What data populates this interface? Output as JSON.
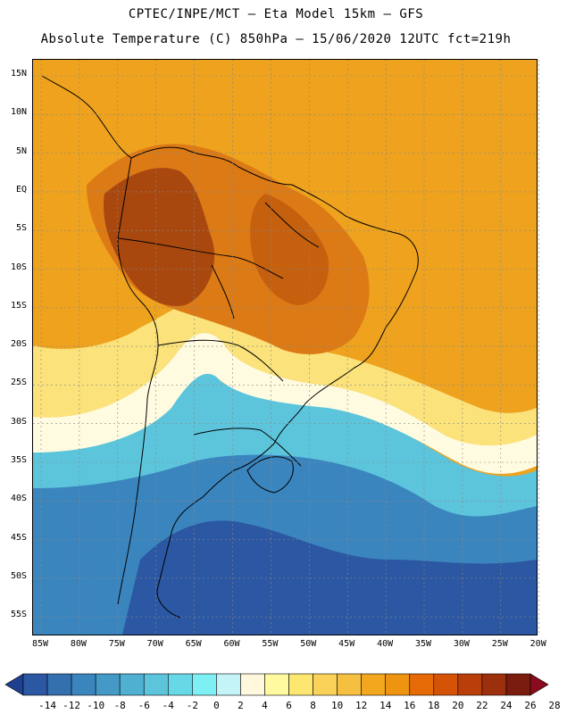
{
  "header": {
    "line1": "CPTEC/INPE/MCT –  Eta Model 15km – GFS",
    "line2": "Absolute Temperature (C) 850hPa – 15/06/2020 12UTC fct=219h"
  },
  "axes": {
    "lat_labels": [
      "15N",
      "10N",
      "5N",
      "EQ",
      "5S",
      "10S",
      "15S",
      "20S",
      "25S",
      "30S",
      "35S",
      "40S",
      "45S",
      "50S",
      "55S"
    ],
    "lon_labels": [
      "85W",
      "80W",
      "75W",
      "70W",
      "65W",
      "60W",
      "55W",
      "50W",
      "45W",
      "40W",
      "35W",
      "30W",
      "25W",
      "20W"
    ]
  },
  "colorbar": {
    "labels": [
      "-14",
      "-12",
      "-10",
      "-8",
      "-6",
      "-4",
      "-2",
      "0",
      "2",
      "4",
      "6",
      "8",
      "10",
      "12",
      "14",
      "16",
      "18",
      "20",
      "22",
      "24",
      "26",
      "28"
    ],
    "colors": [
      "#1f3f8f",
      "#2b57a3",
      "#3470b0",
      "#3b85be",
      "#4599c6",
      "#4fb0d2",
      "#5cc5dc",
      "#67d8e6",
      "#7eeff2",
      "#c4f3f8",
      "#fff8dc",
      "#fffaa0",
      "#fde770",
      "#fad25a",
      "#f5bf3f",
      "#f2a71f",
      "#ee9410",
      "#e66a06",
      "#d55307",
      "#b93e0a",
      "#9c2f0c",
      "#7a1c0e",
      "#8a0b1d"
    ],
    "range_min": -14,
    "range_max": 28
  },
  "map_colors": {
    "deep_cold": "#2b57a3",
    "cold": "#3b85be",
    "cool": "#5cc5dc",
    "light_cyan": "#9fe6ef",
    "pale": "#fffbe0",
    "yellow": "#fbe27a",
    "gold": "#f2b63a",
    "orange": "#eea21e",
    "warm_orange": "#dc7a16",
    "hot": "#c5600f",
    "very_hot": "#a8480f",
    "coast_line": "#000000"
  }
}
